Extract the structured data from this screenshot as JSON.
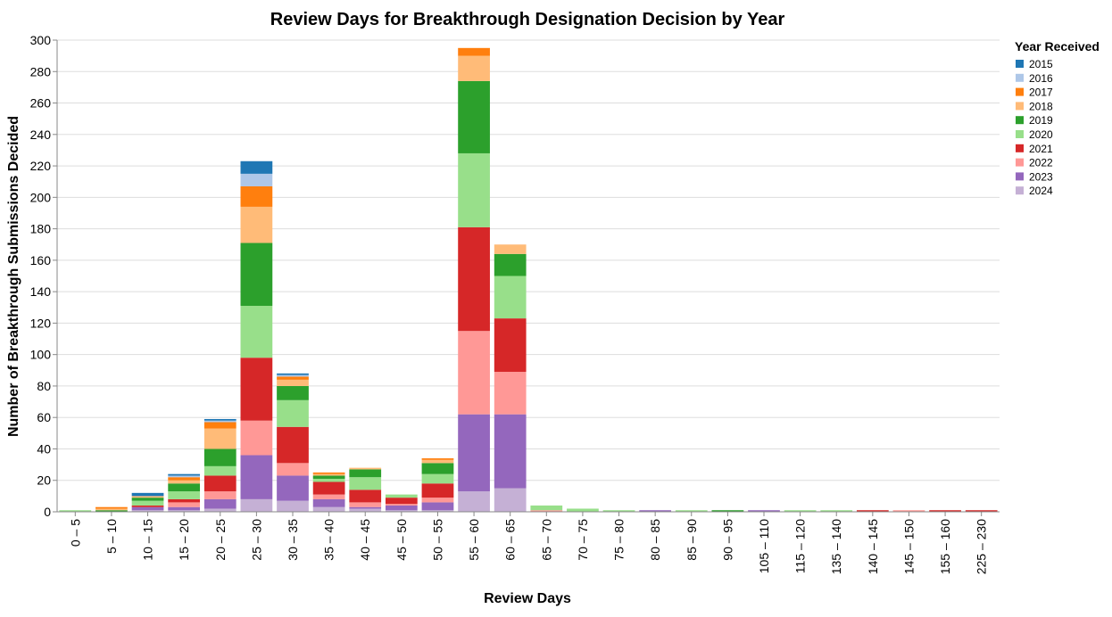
{
  "chart_data": {
    "type": "bar",
    "stacked": true,
    "title": "Review Days for Breakthrough Designation Decision by Year",
    "xlabel": "Review Days",
    "ylabel": "Number of Breakthrough Submissions Decided",
    "ylim": [
      0,
      300
    ],
    "yticks": [
      0,
      20,
      40,
      60,
      80,
      100,
      120,
      140,
      160,
      180,
      200,
      220,
      240,
      260,
      280,
      300
    ],
    "grid": true,
    "legend_title": "Year Received",
    "legend_position": "right",
    "categories": [
      "0 – 5",
      "5 – 10",
      "10 – 15",
      "15 – 20",
      "20 – 25",
      "25 – 30",
      "30 – 35",
      "35 – 40",
      "40 – 45",
      "45 – 50",
      "50 – 55",
      "55 – 60",
      "60 – 65",
      "65 – 70",
      "70 – 75",
      "75 – 80",
      "80 – 85",
      "85 – 90",
      "90 – 95",
      "105 – 110",
      "115 – 120",
      "135 – 140",
      "140 – 145",
      "145 – 150",
      "155 – 160",
      "225 – 230"
    ],
    "series": [
      {
        "name": "2024",
        "color": "#c5b0d5",
        "values": [
          0,
          0,
          1,
          1,
          2,
          8,
          7,
          3,
          2,
          1,
          1,
          13,
          15,
          0,
          0,
          0,
          0,
          0,
          0,
          0,
          0,
          0,
          0,
          0,
          0,
          0
        ]
      },
      {
        "name": "2023",
        "color": "#9467bd",
        "values": [
          0,
          0,
          2,
          2,
          6,
          28,
          16,
          5,
          1,
          3,
          5,
          49,
          47,
          0,
          0,
          0,
          1,
          0,
          0,
          1,
          0,
          0,
          0,
          0,
          0,
          0
        ]
      },
      {
        "name": "2022",
        "color": "#ff9896",
        "values": [
          0,
          0,
          0,
          3,
          5,
          22,
          8,
          3,
          3,
          1,
          3,
          53,
          27,
          1,
          0,
          0,
          0,
          0,
          0,
          0,
          0,
          0,
          0,
          1,
          0,
          0
        ]
      },
      {
        "name": "2021",
        "color": "#d62728",
        "values": [
          0,
          0,
          1,
          2,
          10,
          40,
          23,
          8,
          8,
          4,
          9,
          66,
          34,
          0,
          0,
          0,
          0,
          0,
          0,
          0,
          0,
          0,
          1,
          0,
          1,
          1
        ]
      },
      {
        "name": "2020",
        "color": "#98df8a",
        "values": [
          1,
          0,
          3,
          5,
          6,
          33,
          17,
          2,
          8,
          2,
          6,
          47,
          27,
          3,
          2,
          1,
          0,
          1,
          0,
          0,
          1,
          1,
          0,
          0,
          0,
          0
        ]
      },
      {
        "name": "2019",
        "color": "#2ca02c",
        "values": [
          0,
          1,
          2,
          5,
          11,
          40,
          9,
          2,
          5,
          0,
          7,
          46,
          14,
          0,
          0,
          0,
          0,
          0,
          1,
          0,
          0,
          0,
          0,
          0,
          0,
          0
        ]
      },
      {
        "name": "2018",
        "color": "#ffbb78",
        "values": [
          0,
          1,
          1,
          2,
          13,
          23,
          4,
          1,
          1,
          0,
          2,
          16,
          6,
          0,
          0,
          0,
          0,
          0,
          0,
          0,
          0,
          0,
          0,
          0,
          0,
          0
        ]
      },
      {
        "name": "2017",
        "color": "#ff7f0e",
        "values": [
          0,
          1,
          0,
          2,
          4,
          13,
          2,
          1,
          0,
          0,
          1,
          5,
          0,
          0,
          0,
          0,
          0,
          0,
          0,
          0,
          0,
          0,
          0,
          0,
          0,
          0
        ]
      },
      {
        "name": "2016",
        "color": "#aec7e8",
        "values": [
          0,
          0,
          0,
          1,
          1,
          8,
          1,
          0,
          0,
          0,
          0,
          0,
          0,
          0,
          0,
          0,
          0,
          0,
          0,
          0,
          0,
          0,
          0,
          0,
          0,
          0
        ]
      },
      {
        "name": "2015",
        "color": "#1f77b4",
        "values": [
          0,
          0,
          2,
          1,
          1,
          8,
          1,
          0,
          0,
          0,
          0,
          0,
          0,
          0,
          0,
          0,
          0,
          0,
          0,
          0,
          0,
          0,
          0,
          0,
          0,
          0
        ]
      }
    ],
    "legend_order": [
      "2015",
      "2016",
      "2017",
      "2018",
      "2019",
      "2020",
      "2021",
      "2022",
      "2023",
      "2024"
    ]
  }
}
